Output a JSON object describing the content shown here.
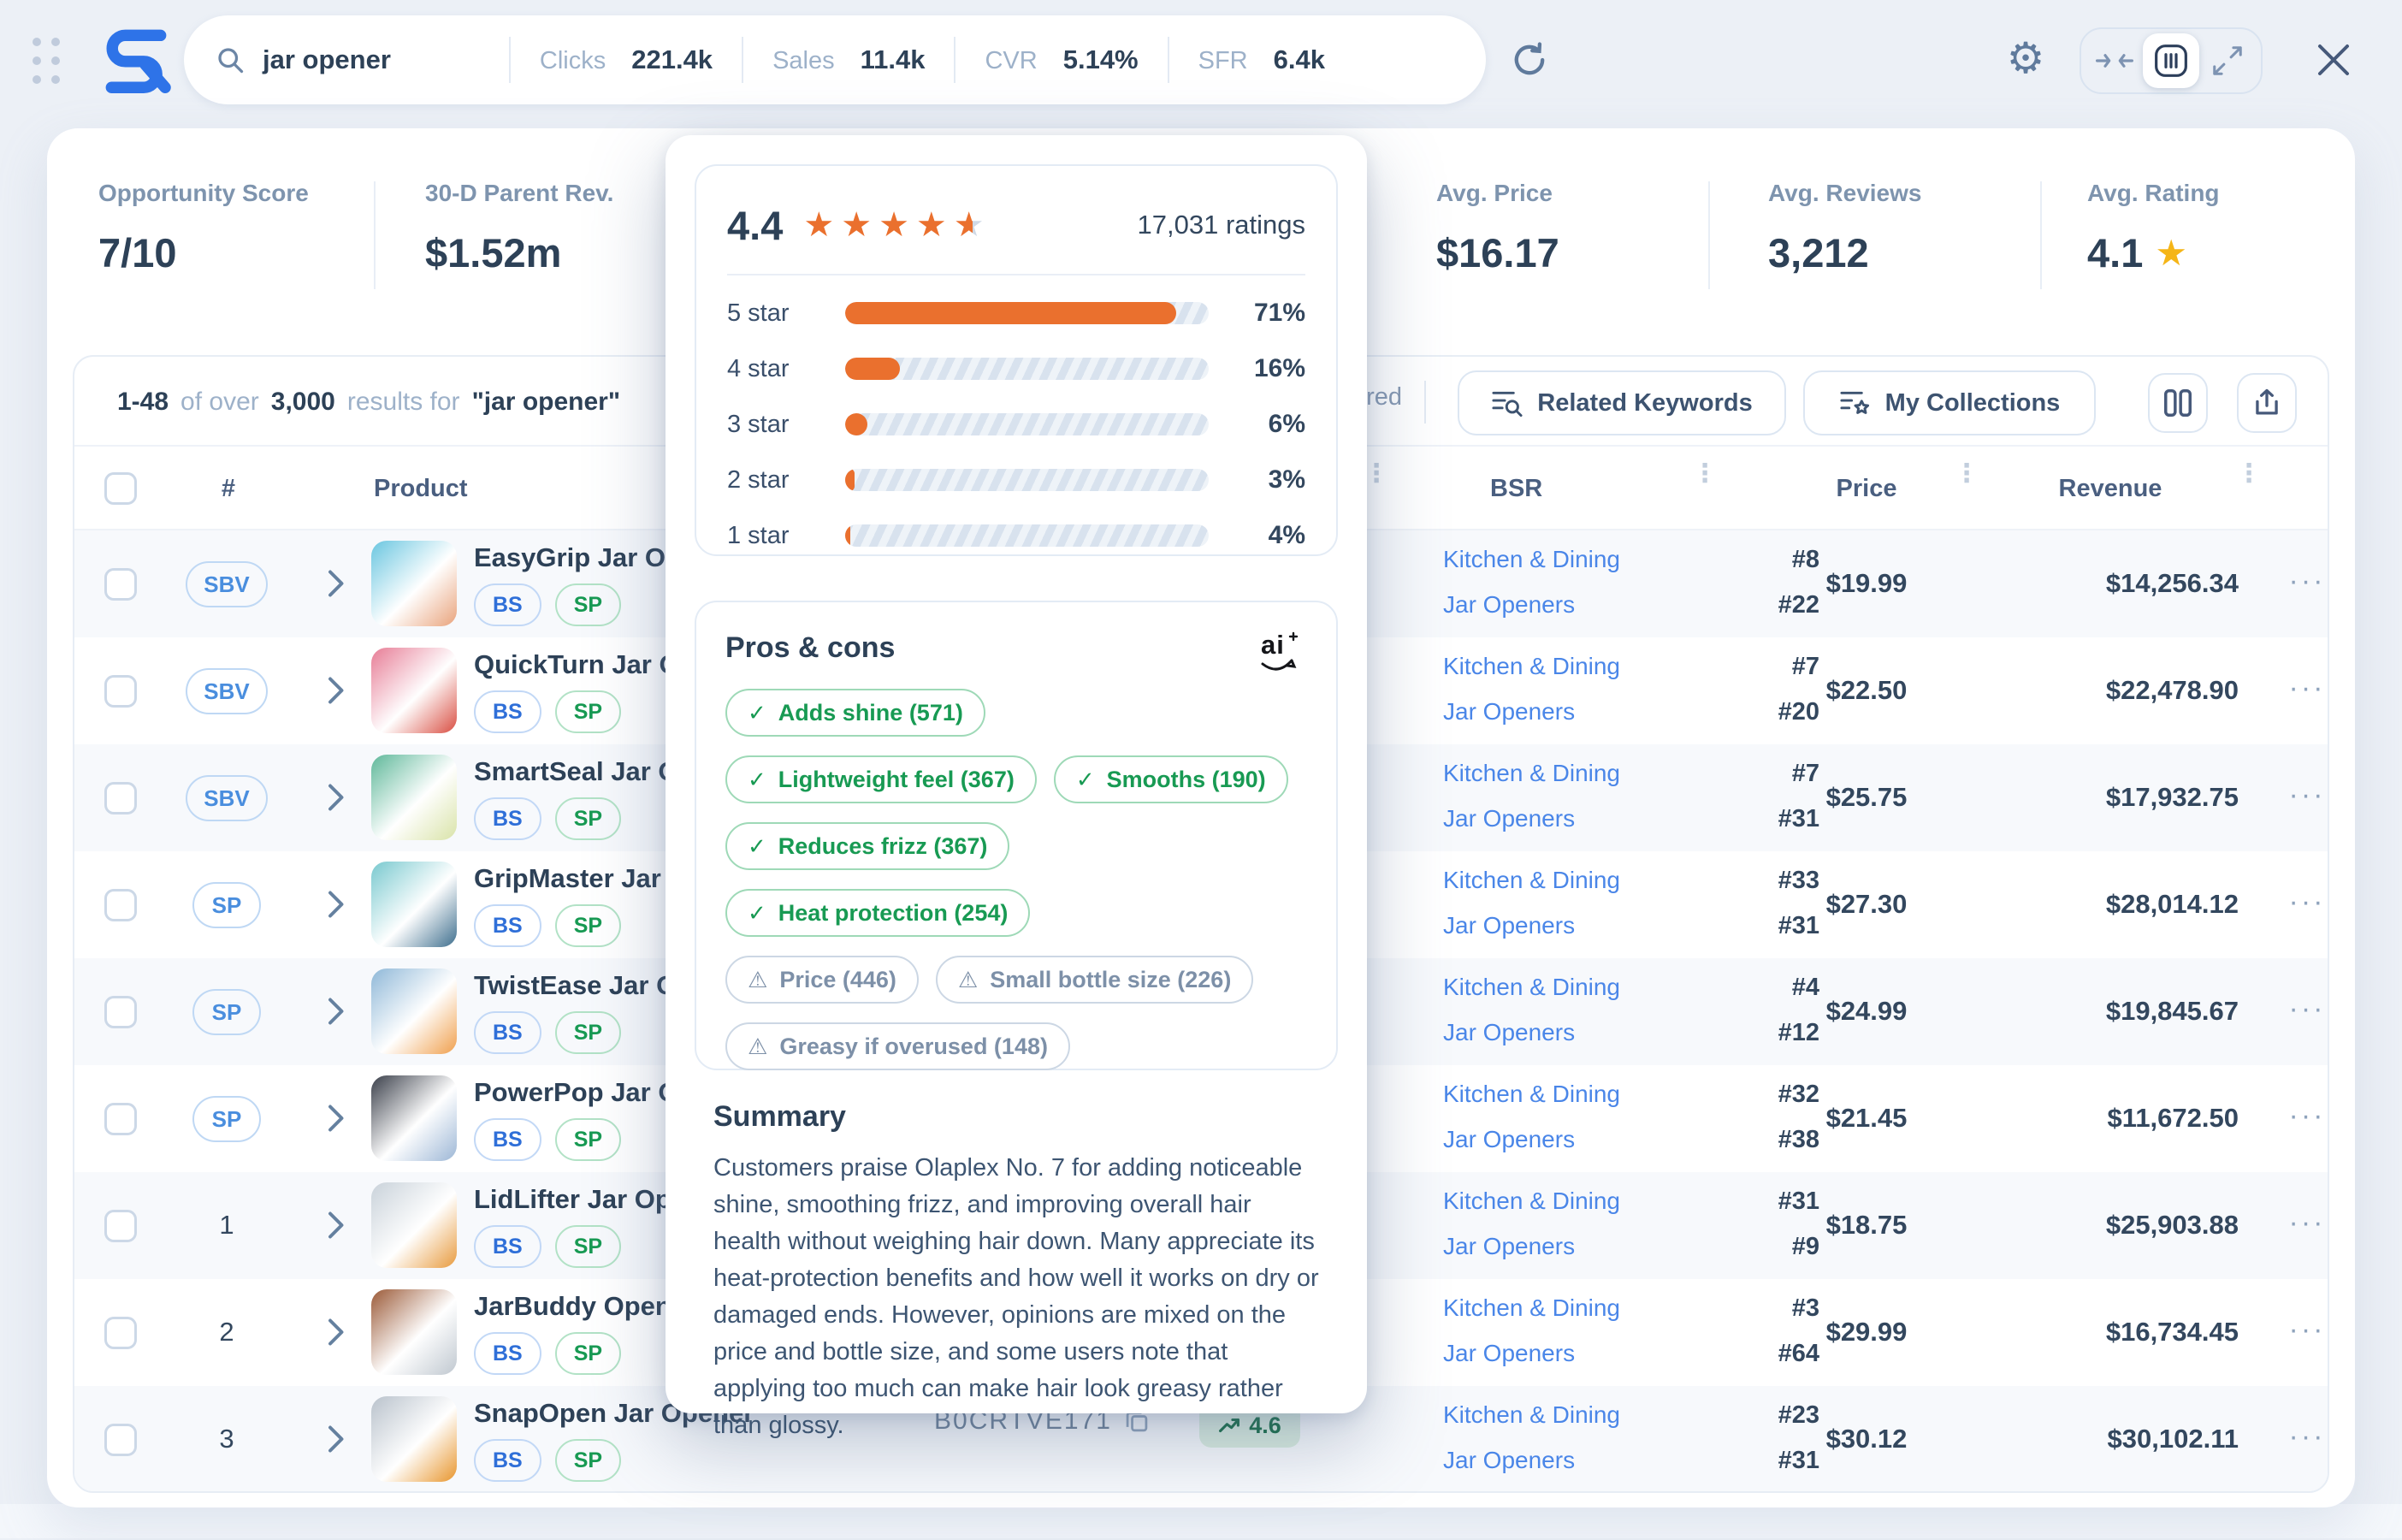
{
  "topbar": {
    "query": "jar opener",
    "metrics": [
      {
        "label": "Clicks",
        "value": "221.4k"
      },
      {
        "label": "Sales",
        "value": "11.4k"
      },
      {
        "label": "CVR",
        "value": "5.14%"
      },
      {
        "label": "SFR",
        "value": "6.4k"
      }
    ]
  },
  "stats": [
    {
      "label": "Opportunity Score",
      "value": "7/10"
    },
    {
      "label": "30-D Parent Rev.",
      "value": "$1.52m"
    },
    {
      "label": "Avg. Price",
      "value": "$16.17"
    },
    {
      "label": "Avg. Reviews",
      "value": "3,212"
    },
    {
      "label": "Avg. Rating",
      "value": "4.1",
      "star": true
    }
  ],
  "results": {
    "range": "1-48",
    "of_over": "of over",
    "total": "3,000",
    "results_for": "results for",
    "query": "\"jar opener\"",
    "sponsored_label": "Sponsored",
    "related_keywords_label": "Related Keywords",
    "my_collections_label": "My Collections"
  },
  "table": {
    "columns": {
      "num": "#",
      "product": "Product",
      "bsr": "BSR",
      "price": "Price",
      "revenue": "Revenue"
    },
    "rows": [
      {
        "tag": "SBV",
        "name": "EasyGrip Jar Opener",
        "badges": [
          "BS",
          "SP"
        ],
        "bsr_cat1": "Kitchen & Dining",
        "bsr_rank1": "#8",
        "bsr_cat2": "Jar Openers",
        "bsr_rank2": "#22",
        "price": "$19.99",
        "revenue": "$14,256.34",
        "img": [
          "#6ac6e0",
          "#e9a37c"
        ]
      },
      {
        "tag": "SBV",
        "name": "QuickTurn Jar Opener",
        "badges": [
          "BS",
          "SP"
        ],
        "bsr_cat1": "Kitchen & Dining",
        "bsr_rank1": "#7",
        "bsr_cat2": "Jar Openers",
        "bsr_rank2": "#20",
        "price": "$22.50",
        "revenue": "$22,478.90",
        "img": [
          "#e77d96",
          "#d94f43"
        ]
      },
      {
        "tag": "SBV",
        "name": "SmartSeal Jar Opener",
        "badges": [
          "BS",
          "SP"
        ],
        "bsr_cat1": "Kitchen & Dining",
        "bsr_rank1": "#7",
        "bsr_cat2": "Jar Openers",
        "bsr_rank2": "#31",
        "price": "$25.75",
        "revenue": "$17,932.75",
        "img": [
          "#5fb89a",
          "#d9e3a8"
        ]
      },
      {
        "tag": "SP",
        "name": "GripMaster Jar Opener",
        "badges": [
          "BS",
          "SP"
        ],
        "bsr_cat1": "Kitchen & Dining",
        "bsr_rank1": "#33",
        "bsr_cat2": "Jar Openers",
        "bsr_rank2": "#31",
        "price": "$27.30",
        "revenue": "$28,014.12",
        "img": [
          "#79c9cf",
          "#3f6f8e"
        ]
      },
      {
        "tag": "SP",
        "name": "TwistEase Jar Opener",
        "badges": [
          "BS",
          "SP"
        ],
        "bsr_cat1": "Kitchen & Dining",
        "bsr_rank1": "#4",
        "bsr_cat2": "Jar Openers",
        "bsr_rank2": "#12",
        "price": "$24.99",
        "revenue": "$19,845.67",
        "img": [
          "#8fb8d8",
          "#f0a04e"
        ]
      },
      {
        "tag": "SP",
        "name": "PowerPop Jar Opener",
        "badges": [
          "BS",
          "SP"
        ],
        "bsr_cat1": "Kitchen & Dining",
        "bsr_rank1": "#32",
        "bsr_cat2": "Jar Openers",
        "bsr_rank2": "#38",
        "price": "$21.45",
        "revenue": "$11,672.50",
        "img": [
          "#3a3f4a",
          "#9db7d6"
        ]
      },
      {
        "tag": "1",
        "name": "LidLifter Jar Opener",
        "badges": [
          "BS",
          "SP"
        ],
        "bsr_cat1": "Kitchen & Dining",
        "bsr_rank1": "#31",
        "bsr_cat2": "Jar Openers",
        "bsr_rank2": "#9",
        "price": "$18.75",
        "revenue": "$25,903.88",
        "img": [
          "#c9d2da",
          "#e89b3f"
        ]
      },
      {
        "tag": "2",
        "name": "JarBuddy Opener",
        "badges": [
          "BS",
          "SP"
        ],
        "bsr_cat1": "Kitchen & Dining",
        "bsr_rank1": "#3",
        "bsr_cat2": "Jar Openers",
        "bsr_rank2": "#64",
        "price": "$29.99",
        "revenue": "$16,734.45",
        "img": [
          "#9b5a38",
          "#c0c8d0"
        ]
      },
      {
        "tag": "3",
        "name": "SnapOpen Jar Opener",
        "badges": [
          "BS",
          "SP"
        ],
        "bsr_cat1": "Kitchen & Dining",
        "bsr_rank1": "#23",
        "bsr_cat2": "Jar Openers",
        "bsr_rank2": "#31",
        "price": "$30.12",
        "revenue": "$30,102.11",
        "img": [
          "#b9c2cc",
          "#e8962e"
        ],
        "asin": "B0CRTVE171",
        "rating_badge": "4.6"
      }
    ]
  },
  "popup": {
    "rating": {
      "score": "4.4",
      "stars_full": 4,
      "stars_half": true,
      "count_label": "17,031 ratings",
      "distribution": [
        {
          "label": "5 star",
          "pct": "71%",
          "fill": 91
        },
        {
          "label": "4 star",
          "pct": "16%",
          "fill": 15
        },
        {
          "label": "3 star",
          "pct": "6%",
          "fill": 6
        },
        {
          "label": "2 star",
          "pct": "3%",
          "fill": 2.5
        },
        {
          "label": "1 star",
          "pct": "4%",
          "fill": 1.5
        }
      ]
    },
    "pros_cons": {
      "title": "Pros & cons",
      "ai_label": "ai",
      "pros_rows": [
        [
          "Adds shine (571)"
        ],
        [
          "Lightweight feel (367)",
          "Smooths (190)"
        ],
        [
          "Reduces frizz (367)"
        ],
        [
          "Heat protection (254)"
        ]
      ],
      "cons_rows": [
        [
          "Price (446)",
          "Small bottle size (226)"
        ],
        [
          "Greasy if overused (148)"
        ]
      ]
    },
    "summary": {
      "title": "Summary",
      "text": "Customers praise Olaplex No. 7 for adding noticeable shine, smoothing frizz, and improving overall hair health without weighing hair down. Many appreciate its heat-protection benefits and how well it works on dry or damaged ends. However, opinions are mixed on the price and bottle size, and some users note that applying too much can make hair look greasy rather than glossy."
    }
  }
}
